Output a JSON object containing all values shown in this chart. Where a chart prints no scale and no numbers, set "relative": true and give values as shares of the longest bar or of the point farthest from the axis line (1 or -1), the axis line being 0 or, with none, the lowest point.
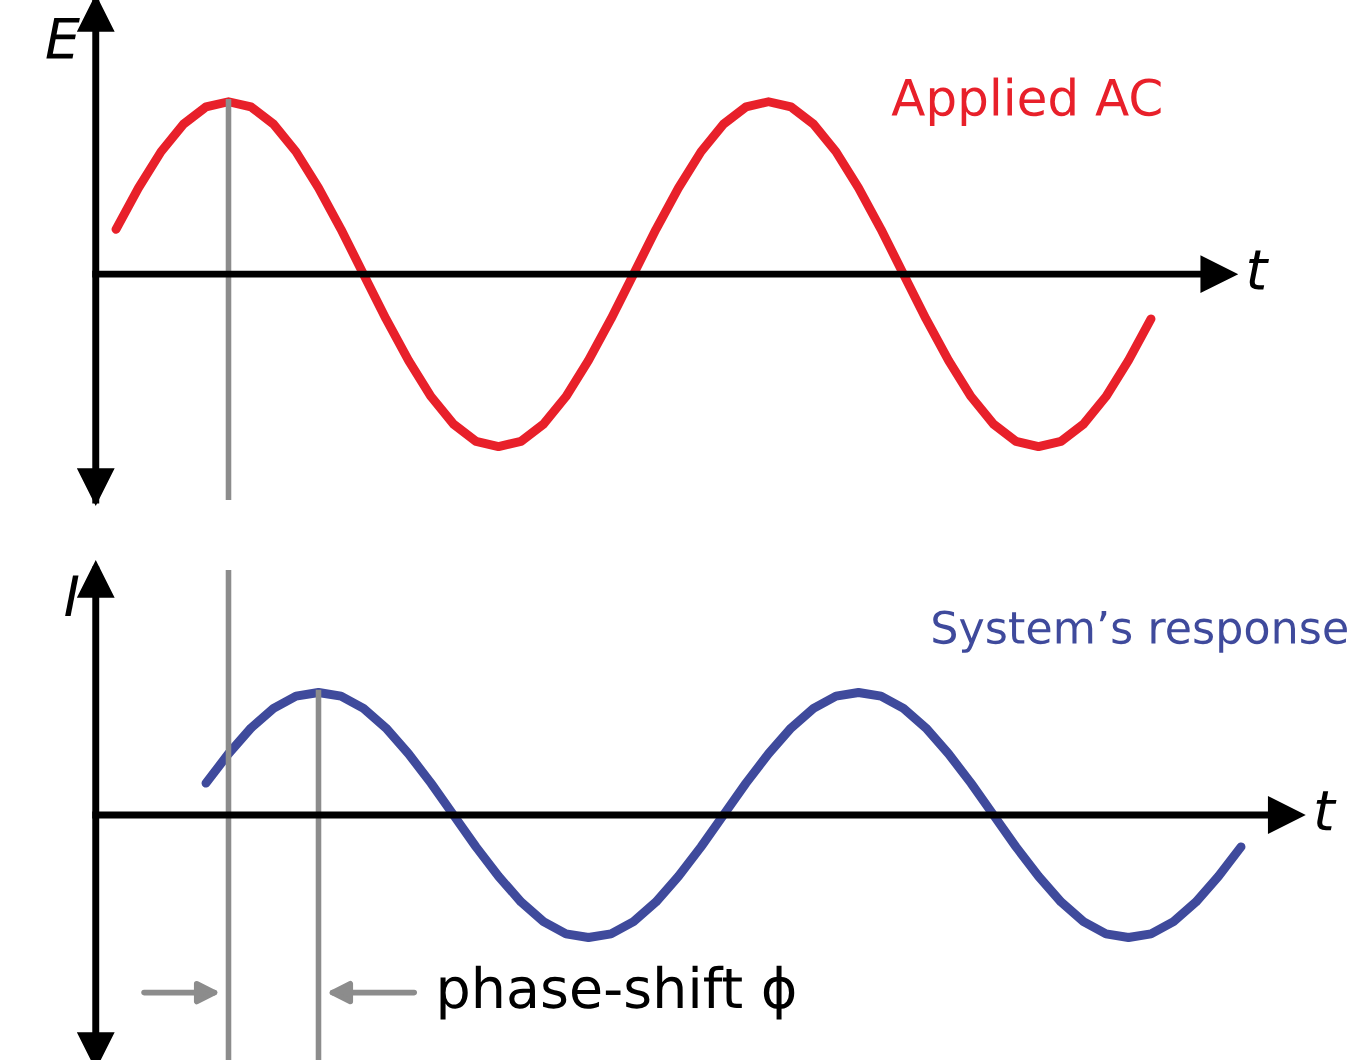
{
  "chart_data": [
    {
      "type": "line",
      "relative": true,
      "ylabel": "E",
      "xlabel": "t",
      "marker": "none",
      "line_style": "solid",
      "categories": [
        null,
        null,
        null,
        null,
        null,
        null,
        null,
        null,
        null,
        null,
        null,
        null,
        null,
        null,
        null,
        null,
        null,
        null,
        null,
        null,
        null,
        null,
        null,
        null,
        null,
        null,
        null,
        null,
        null,
        null,
        null,
        null,
        null,
        null,
        null,
        null,
        null,
        null,
        null,
        null,
        null,
        null,
        null,
        null,
        null,
        null,
        null,
        null,
        null,
        null,
        null
      ],
      "series": [
        {
          "name": "Applied AC",
          "color": "#e8202a",
          "values": [
            0.26,
            0.5,
            0.71,
            0.87,
            0.97,
            1,
            0.97,
            0.87,
            0.71,
            0.5,
            0.26,
            0,
            -0.26,
            -0.5,
            -0.71,
            -0.87,
            -0.97,
            -1,
            -0.97,
            -0.87,
            -0.71,
            -0.5,
            -0.26,
            0,
            0.26,
            0.5,
            0.71,
            0.87,
            0.97,
            1,
            0.97,
            0.87,
            0.71,
            0.5,
            0.26,
            0,
            -0.26,
            -0.5,
            -0.71,
            -0.87,
            -0.97,
            -1,
            -0.97,
            -0.87,
            -0.71,
            -0.5,
            -0.26,
            null,
            null,
            null,
            null
          ]
        }
      ],
      "legend": false
    },
    {
      "type": "line",
      "relative": true,
      "ylabel": "I",
      "xlabel": "t",
      "marker": "none",
      "line_style": "solid",
      "categories": [
        null,
        null,
        null,
        null,
        null,
        null,
        null,
        null,
        null,
        null,
        null,
        null,
        null,
        null,
        null,
        null,
        null,
        null,
        null,
        null,
        null,
        null,
        null,
        null,
        null,
        null,
        null,
        null,
        null,
        null,
        null,
        null,
        null,
        null,
        null,
        null,
        null,
        null,
        null,
        null,
        null,
        null,
        null,
        null,
        null,
        null,
        null,
        null,
        null,
        null,
        null
      ],
      "series": [
        {
          "name": "System’s response",
          "color": "#3f4a9c",
          "values": [
            null,
            null,
            null,
            null,
            0.26,
            0.5,
            0.71,
            0.87,
            0.97,
            1,
            0.97,
            0.87,
            0.71,
            0.5,
            0.26,
            0,
            -0.26,
            -0.5,
            -0.71,
            -0.87,
            -0.97,
            -1,
            -0.97,
            -0.87,
            -0.71,
            -0.5,
            -0.26,
            0,
            0.26,
            0.5,
            0.71,
            0.87,
            0.97,
            1,
            0.97,
            0.87,
            0.71,
            0.5,
            0.26,
            0,
            -0.26,
            -0.5,
            -0.71,
            -0.87,
            -0.97,
            -1,
            -0.97,
            -0.87,
            -0.71,
            -0.5,
            -0.26
          ]
        }
      ],
      "legend": false,
      "annotations": [
        "phase-shift ϕ"
      ]
    }
  ]
}
